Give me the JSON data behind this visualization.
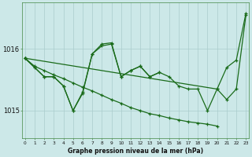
{
  "title": "Graphe pression niveau de la mer (hPa)",
  "bg_color": "#cce8e8",
  "grid_color": "#aacccc",
  "line_color": "#1a6b1a",
  "yticks": [
    1015,
    1016
  ],
  "ylim": [
    1014.55,
    1016.75
  ],
  "xlim": [
    -0.3,
    23.3
  ],
  "lines_data": {
    "line1_x": [
      0,
      1,
      2,
      3,
      4,
      5,
      6,
      7,
      8,
      9,
      10,
      11,
      12,
      13,
      14
    ],
    "line1_y": [
      1015.85,
      1015.7,
      1015.55,
      1015.55,
      1015.4,
      1015.0,
      1015.28,
      1015.92,
      1016.05,
      1016.08,
      1015.55,
      1015.65,
      1015.72,
      1015.55,
      1015.62
    ],
    "line2_x": [
      0,
      1,
      2,
      3,
      4,
      5,
      6,
      7,
      8,
      9,
      10,
      11,
      12,
      13,
      14,
      15,
      16,
      17,
      18,
      19,
      20
    ],
    "line2_y": [
      1015.85,
      1015.72,
      1015.65,
      1015.58,
      1015.52,
      1015.45,
      1015.38,
      1015.32,
      1015.25,
      1015.18,
      1015.12,
      1015.05,
      1015.0,
      1014.95,
      1014.92,
      1014.88,
      1014.85,
      1014.82,
      1014.8,
      1014.78,
      1014.75
    ],
    "line3_x": [
      0,
      2,
      3,
      4,
      5,
      6,
      7,
      8,
      9,
      10,
      11,
      12,
      13,
      14,
      15,
      16,
      17,
      18,
      19,
      20,
      21,
      22,
      23
    ],
    "line3_y": [
      1015.85,
      1015.55,
      1015.55,
      1015.4,
      1015.0,
      1015.3,
      1015.92,
      1016.08,
      1016.1,
      1015.55,
      1015.65,
      1015.72,
      1015.55,
      1015.62,
      1015.55,
      1015.4,
      1015.35,
      1015.35,
      1015.0,
      1015.35,
      1015.18,
      1015.35,
      1016.55
    ],
    "line4_x": [
      0,
      20,
      21,
      22,
      23
    ],
    "line4_y": [
      1015.85,
      1015.35,
      1015.7,
      1015.82,
      1016.58
    ]
  }
}
